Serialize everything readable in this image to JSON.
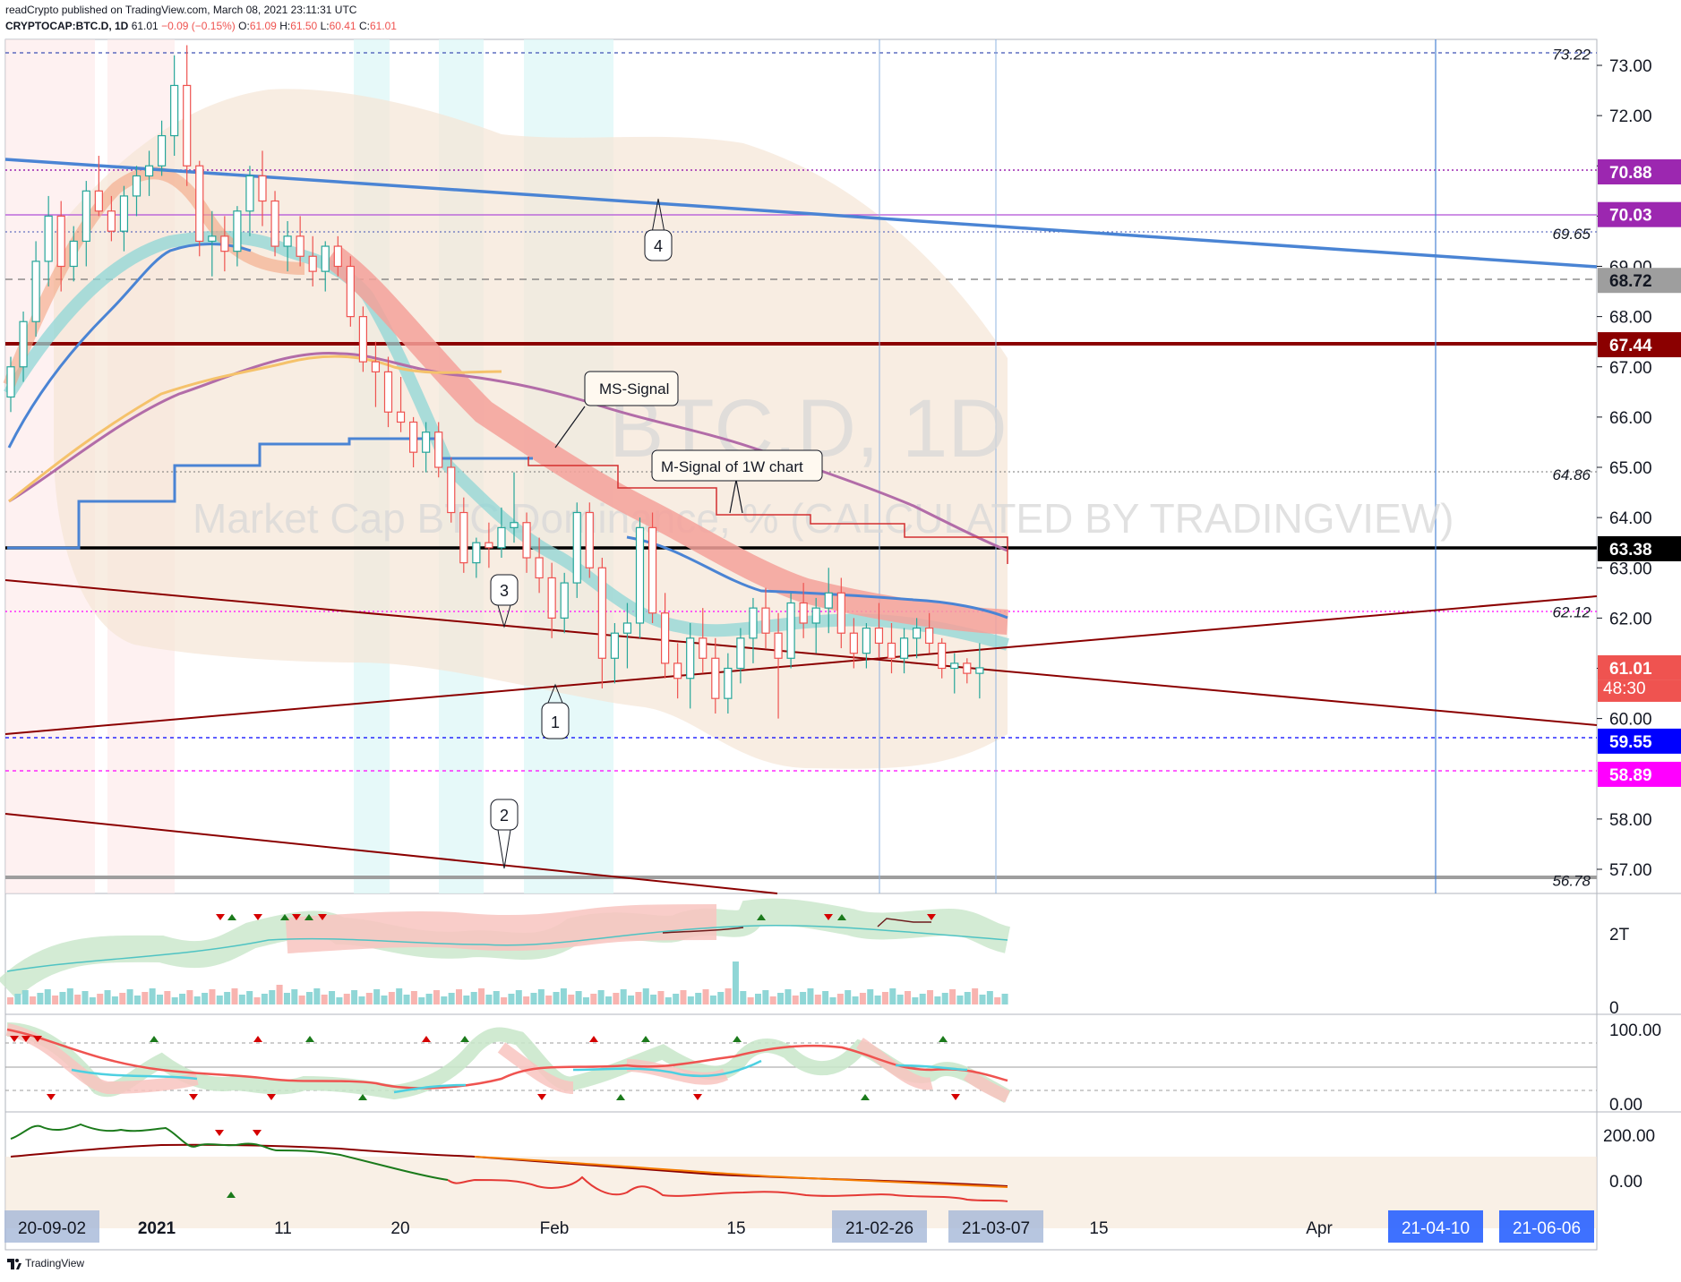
{
  "header": {
    "line1": "readCrypto published on TradingView.com, March 08, 2021 23:11:31 UTC",
    "symbol": "CRYPTOCAP:BTC.D, 1D",
    "last": "61.01",
    "change": "−0.09 (−0.15%)",
    "open_label": "O:",
    "open": "61.09",
    "high_label": "H:",
    "high": "61.50",
    "low_label": "L:",
    "low": "60.41",
    "close_label": "C:",
    "close": "61.01"
  },
  "watermark": {
    "symbol": "BTC.D, 1D",
    "description": "Market Cap BTC Dominance, % (CALCULATED BY TRADINGVIEW)"
  },
  "footer": {
    "brand": "TradingView"
  },
  "colors": {
    "up": "#26a69a",
    "down": "#ef5350",
    "trend_blue": "#4a84d4",
    "dark_red": "#8b0000",
    "purple_line": "#b04fd8",
    "magenta": "#ff00ff",
    "navy": "#0000ff"
  },
  "chart_data": {
    "type": "candlestick",
    "title": "",
    "ylim": [
      56.6,
      73.5
    ],
    "y_ticks": [
      "73.00",
      "72.00",
      "71.00",
      "70.00",
      "69.00",
      "68.00",
      "67.00",
      "66.00",
      "65.00",
      "64.00",
      "63.00",
      "62.00",
      "61.00",
      "60.00",
      "58.00",
      "57.00"
    ],
    "x_ticks": [
      {
        "label": "20-09-02",
        "boxed": true
      },
      {
        "label": "2021",
        "bold": true
      },
      {
        "label": "11"
      },
      {
        "label": "20"
      },
      {
        "label": "Feb"
      },
      {
        "label": "15"
      },
      {
        "label": "21-02-26",
        "boxed": true
      },
      {
        "label": "21-03-07",
        "boxed": true
      },
      {
        "label": "15"
      },
      {
        "label": "Apr"
      },
      {
        "label": "21-04-10",
        "boxed": true,
        "dark": true
      },
      {
        "label": "21-06-06",
        "boxed": true,
        "dark": true
      }
    ],
    "ohlc": [
      [
        66.4,
        67.2,
        66.1,
        67.0
      ],
      [
        67.0,
        68.1,
        66.7,
        67.9
      ],
      [
        67.9,
        69.5,
        67.6,
        69.1
      ],
      [
        69.1,
        70.4,
        68.6,
        70.0
      ],
      [
        70.0,
        70.3,
        68.5,
        69.0
      ],
      [
        69.0,
        69.8,
        68.7,
        69.5
      ],
      [
        69.5,
        70.7,
        69.0,
        70.5
      ],
      [
        70.5,
        71.2,
        70.0,
        70.1
      ],
      [
        70.1,
        70.4,
        69.5,
        69.7
      ],
      [
        69.7,
        70.6,
        69.3,
        70.4
      ],
      [
        70.4,
        71.0,
        70.0,
        70.8
      ],
      [
        70.8,
        71.3,
        70.4,
        71.0
      ],
      [
        71.0,
        71.9,
        70.8,
        71.6
      ],
      [
        71.6,
        73.2,
        71.2,
        72.6
      ],
      [
        72.6,
        73.4,
        70.6,
        71.0
      ],
      [
        71.0,
        71.1,
        69.2,
        69.5
      ],
      [
        69.5,
        70.1,
        68.8,
        69.6
      ],
      [
        69.6,
        70.0,
        68.9,
        69.3
      ],
      [
        69.3,
        70.2,
        69.0,
        70.1
      ],
      [
        70.1,
        71.0,
        69.6,
        70.8
      ],
      [
        70.8,
        71.3,
        69.8,
        70.3
      ],
      [
        70.3,
        70.5,
        69.2,
        69.4
      ],
      [
        69.4,
        69.9,
        68.9,
        69.6
      ],
      [
        69.6,
        70.0,
        69.0,
        69.2
      ],
      [
        69.2,
        69.6,
        68.6,
        68.9
      ],
      [
        68.9,
        69.5,
        68.5,
        69.4
      ],
      [
        69.4,
        69.6,
        68.8,
        69.0
      ],
      [
        69.0,
        69.2,
        67.8,
        68.0
      ],
      [
        68.0,
        68.2,
        66.9,
        67.1
      ],
      [
        67.1,
        67.5,
        66.2,
        66.9
      ],
      [
        66.9,
        67.2,
        65.8,
        66.1
      ],
      [
        66.1,
        66.8,
        65.7,
        65.9
      ],
      [
        65.9,
        66.0,
        65.0,
        65.3
      ],
      [
        65.3,
        65.9,
        64.9,
        65.7
      ],
      [
        65.7,
        65.9,
        64.8,
        65.0
      ],
      [
        65.0,
        65.2,
        63.9,
        64.1
      ],
      [
        64.1,
        64.4,
        62.9,
        63.1
      ],
      [
        63.1,
        63.6,
        62.8,
        63.5
      ],
      [
        63.5,
        63.9,
        63.0,
        63.4
      ],
      [
        63.4,
        64.2,
        63.2,
        63.8
      ],
      [
        63.8,
        64.9,
        63.5,
        63.9
      ],
      [
        63.9,
        64.1,
        62.9,
        63.2
      ],
      [
        63.2,
        63.6,
        62.5,
        62.8
      ],
      [
        62.8,
        63.1,
        61.6,
        62.0
      ],
      [
        62.0,
        62.9,
        61.7,
        62.7
      ],
      [
        62.7,
        64.3,
        62.4,
        64.1
      ],
      [
        64.1,
        64.3,
        62.8,
        63.0
      ],
      [
        63.0,
        63.2,
        60.6,
        61.2
      ],
      [
        61.2,
        61.9,
        60.7,
        61.7
      ],
      [
        61.7,
        62.3,
        61.0,
        61.9
      ],
      [
        61.9,
        64.0,
        61.6,
        63.8
      ],
      [
        63.8,
        64.1,
        61.9,
        62.1
      ],
      [
        62.1,
        62.5,
        60.8,
        61.1
      ],
      [
        61.1,
        61.5,
        60.4,
        60.8
      ],
      [
        60.8,
        61.9,
        60.2,
        61.6
      ],
      [
        61.6,
        62.2,
        60.9,
        61.2
      ],
      [
        61.2,
        61.6,
        60.1,
        60.4
      ],
      [
        60.4,
        61.3,
        60.1,
        61.0
      ],
      [
        61.0,
        61.8,
        60.7,
        61.6
      ],
      [
        61.6,
        62.4,
        61.1,
        62.2
      ],
      [
        62.2,
        62.6,
        61.4,
        61.7
      ],
      [
        61.7,
        62.1,
        60.0,
        61.2
      ],
      [
        61.2,
        62.5,
        61.0,
        62.3
      ],
      [
        62.3,
        62.7,
        61.6,
        61.9
      ],
      [
        61.9,
        62.4,
        61.3,
        62.2
      ],
      [
        62.2,
        63.0,
        61.7,
        62.5
      ],
      [
        62.5,
        62.8,
        61.4,
        61.7
      ],
      [
        61.7,
        62.0,
        61.0,
        61.3
      ],
      [
        61.3,
        61.9,
        61.0,
        61.8
      ],
      [
        61.8,
        62.3,
        61.2,
        61.5
      ],
      [
        61.5,
        61.9,
        60.9,
        61.2
      ],
      [
        61.2,
        61.8,
        60.9,
        61.6
      ],
      [
        61.6,
        62.0,
        61.2,
        61.8
      ],
      [
        61.8,
        62.1,
        61.3,
        61.5
      ],
      [
        61.5,
        61.6,
        60.8,
        61.0
      ],
      [
        61.0,
        61.3,
        60.5,
        61.1
      ],
      [
        61.1,
        61.2,
        60.7,
        60.9
      ],
      [
        60.9,
        61.5,
        60.4,
        61.01
      ]
    ],
    "price_labels": [
      {
        "value": 73.22,
        "text": "73.22",
        "type": "text"
      },
      {
        "value": 70.88,
        "text": "70.88",
        "type": "box",
        "color": "#9c27b0"
      },
      {
        "value": 70.03,
        "text": "70.03",
        "type": "box",
        "color": "#9c27b0"
      },
      {
        "value": 69.65,
        "text": "69.65",
        "type": "text"
      },
      {
        "value": 68.72,
        "text": "68.72",
        "type": "box",
        "color": "#9e9e9e",
        "textcolor": "#131722"
      },
      {
        "value": 67.44,
        "text": "67.44",
        "type": "box",
        "color": "#8b0000"
      },
      {
        "value": 64.86,
        "text": "64.86",
        "type": "text"
      },
      {
        "value": 63.38,
        "text": "63.38",
        "type": "box",
        "color": "#000000"
      },
      {
        "value": 62.12,
        "text": "62.12",
        "type": "text"
      },
      {
        "value": 61.01,
        "text": "61.01",
        "type": "box",
        "color": "#ef5350"
      },
      {
        "value": 59.55,
        "text": "59.55",
        "type": "box",
        "color": "#0000ff"
      },
      {
        "value": 58.89,
        "text": "58.89",
        "type": "box",
        "color": "#ff00ff"
      },
      {
        "value": 56.78,
        "text": "56.78",
        "type": "text"
      }
    ],
    "countdown": "48:30",
    "annotations": [
      {
        "text": "MS-Signal"
      },
      {
        "text": "M-Signal of 1W chart"
      },
      {
        "text": "1"
      },
      {
        "text": "2"
      },
      {
        "text": "3"
      },
      {
        "text": "4"
      }
    ],
    "volume_scale": [
      "2T",
      "0"
    ],
    "osc1_scale": [
      "100.00",
      "0.00"
    ],
    "osc2_scale": [
      "200.00",
      "0.00"
    ]
  }
}
